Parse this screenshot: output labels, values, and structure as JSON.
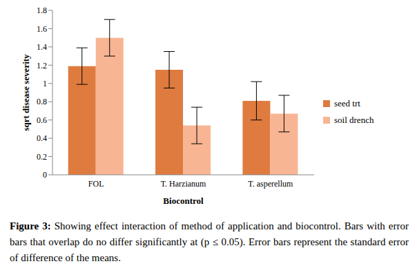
{
  "chart_data": {
    "type": "bar",
    "categories": [
      "FOL",
      "T. Harzianum",
      "T. asperellum"
    ],
    "series": [
      {
        "name": "seed trt",
        "color": "#df7b3f",
        "values": [
          1.19,
          1.15,
          0.81
        ],
        "errors": [
          0.2,
          0.2,
          0.21
        ]
      },
      {
        "name": "soil drench",
        "color": "#f8b593",
        "values": [
          1.5,
          0.54,
          0.67
        ],
        "errors": [
          0.2,
          0.2,
          0.2
        ]
      }
    ],
    "x_label": "Biocontrol",
    "y_label": "sqrt disease severity",
    "ylim": [
      0,
      1.8
    ],
    "yticks": [
      0,
      0.2,
      0.4,
      0.6,
      0.8,
      1,
      1.2,
      1.4,
      1.6,
      1.8
    ],
    "grid": false,
    "legend": "right",
    "caption": {
      "label": "Figure 3:",
      "text": "Showing effect interaction of method of application and biocontrol. Bars with error bars that overlap do no differ significantly at (p ≤ 0.05). Error bars represent the standard error of difference of the means."
    }
  }
}
